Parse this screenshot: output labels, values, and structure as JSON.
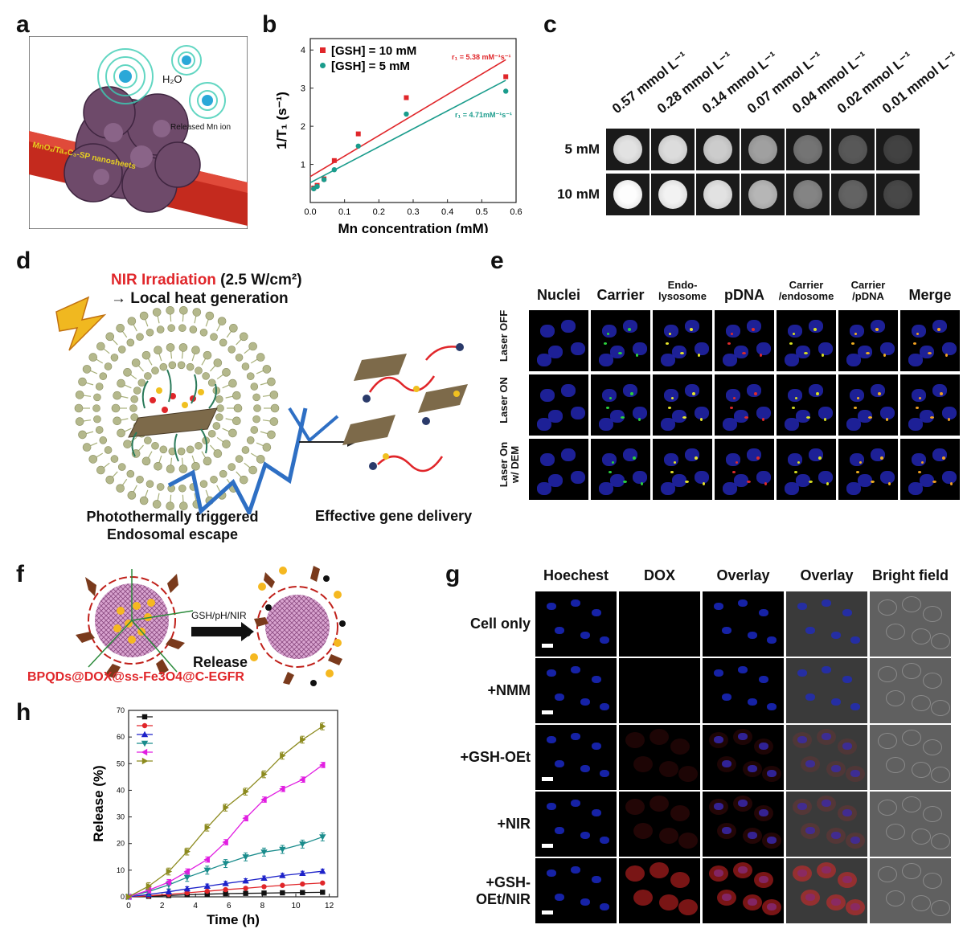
{
  "panels": {
    "a": {
      "letter": "a",
      "labels": {
        "water": "H₂O",
        "released": "Released Mn ion",
        "nanosheet": "MnOₓ/Ta₄C₃-SP nanosheets"
      }
    },
    "b": {
      "letter": "b",
      "r1_red": "r₁ = 5.38 mM⁻¹s⁻¹",
      "r1_teal": "r₁ = 4.71mM⁻¹s⁻¹"
    },
    "c": {
      "letter": "c",
      "concentrations": [
        "0.57 mmol L⁻¹",
        "0.28 mmol L⁻¹",
        "0.14 mmol L⁻¹",
        "0.07 mmol L⁻¹",
        "0.04 mmol L⁻¹",
        "0.02 mmol L⁻¹",
        "0.01 mmol L⁻¹"
      ],
      "rows": [
        "5 mM",
        "10 mM"
      ],
      "brightness_5mM": [
        0.82,
        0.8,
        0.74,
        0.58,
        0.42,
        0.32,
        0.24
      ],
      "brightness_10mM": [
        0.92,
        0.88,
        0.82,
        0.66,
        0.48,
        0.36,
        0.26
      ]
    },
    "d": {
      "letter": "d",
      "nir": "NIR Irradiation",
      "power": " (2.5 W/cm²)",
      "heat": "→ Local heat generation",
      "caption_left_1": "Photothermally triggered",
      "caption_left_2": "Endosomal escape",
      "caption_right": "Effective gene delivery"
    },
    "e": {
      "letter": "e",
      "columns": [
        "Nuclei",
        "Carrier",
        "Endo-\nlysosome",
        "pDNA",
        "Carrier\n/endosome",
        "Carrier\n/pDNA",
        "Merge"
      ],
      "rows": [
        "Laser OFF",
        "Laser ON",
        "Laser On\nw/ DEM"
      ]
    },
    "f": {
      "letter": "f",
      "arrow_label": "GSH/pH/NIR",
      "release": "Release",
      "formula": "BPQDs@DOX@ss-Fe3O4@C-EGFR"
    },
    "g": {
      "letter": "g",
      "columns": [
        "Hoechest",
        "DOX",
        "Overlay",
        "Overlay",
        "Bright field"
      ],
      "rows": [
        "Cell only",
        "+NMM",
        "+GSH-OEt",
        "+NIR",
        "+GSH-\nOEt/NIR"
      ],
      "dox_intensity": [
        0.02,
        0.02,
        0.18,
        0.22,
        0.75
      ]
    },
    "h": {
      "letter": "h"
    }
  },
  "chart_data": [
    {
      "panel": "b",
      "type": "scatter",
      "xlabel": "Mn concentration (mM)",
      "ylabel": "1/T₁ (s⁻¹)",
      "xlim": [
        0,
        0.6
      ],
      "ylim": [
        0,
        4.3
      ],
      "xticks": [
        "0.0",
        "0.1",
        "0.2",
        "0.3",
        "0.4",
        "0.5",
        "0.6"
      ],
      "yticks": [
        "1",
        "2",
        "3",
        "4"
      ],
      "legend_position": "top-left",
      "series": [
        {
          "name": "[GSH] = 10 mM",
          "color": "#e0262a",
          "marker": "square",
          "x": [
            0.01,
            0.02,
            0.04,
            0.07,
            0.14,
            0.28,
            0.57
          ],
          "y": [
            0.38,
            0.45,
            0.62,
            1.1,
            1.8,
            2.75,
            3.3
          ],
          "fit": {
            "intercept": 0.68,
            "slope": 5.38
          }
        },
        {
          "name": "[GSH] = 5 mM",
          "color": "#1a9c8c",
          "marker": "circle",
          "x": [
            0.01,
            0.02,
            0.04,
            0.07,
            0.14,
            0.28,
            0.57
          ],
          "y": [
            0.36,
            0.42,
            0.6,
            0.86,
            1.48,
            2.32,
            2.92
          ],
          "fit": {
            "intercept": 0.52,
            "slope": 4.71
          }
        }
      ]
    },
    {
      "panel": "h",
      "type": "line",
      "xlabel": "Time (h)",
      "ylabel": "Release (%)",
      "xlim": [
        0,
        12.5
      ],
      "ylim": [
        0,
        70
      ],
      "xticks": [
        "0",
        "2",
        "4",
        "6",
        "8",
        "10",
        "12"
      ],
      "yticks": [
        "0",
        "10",
        "20",
        "30",
        "40",
        "50",
        "60",
        "70"
      ],
      "legend_position": "top-left",
      "x": [
        0,
        1.2,
        2.4,
        3.5,
        4.7,
        5.8,
        7,
        8.1,
        9.2,
        10.4,
        11.6
      ],
      "series": [
        {
          "color": "#111111",
          "marker": "square",
          "values": [
            0,
            0.2,
            0.5,
            0.8,
            1,
            1.2,
            1.3,
            1.4,
            1.5,
            1.6,
            1.7
          ],
          "error": 0.3
        },
        {
          "color": "#e0262a",
          "marker": "circle",
          "values": [
            0,
            0.4,
            0.9,
            1.5,
            2.1,
            2.7,
            3.2,
            3.8,
            4.3,
            4.8,
            5.2
          ],
          "error": 0.4
        },
        {
          "color": "#1d22c9",
          "marker": "triangle",
          "values": [
            0,
            0.9,
            1.9,
            3,
            4,
            5,
            6,
            7,
            8,
            8.8,
            9.6
          ],
          "error": 0.8
        },
        {
          "color": "#1a8c8c",
          "marker": "triangle-down",
          "values": [
            0,
            2,
            4.5,
            7.3,
            10,
            12.5,
            15,
            16.8,
            17.8,
            19.8,
            22.5
          ],
          "error": 1.5
        },
        {
          "color": "#e11ee1",
          "marker": "triangle-left",
          "values": [
            0,
            2.5,
            5.5,
            9.5,
            14,
            20.5,
            29.5,
            36.5,
            40.5,
            44,
            49.5
          ],
          "error": 1.0
        },
        {
          "color": "#8c8a1e",
          "marker": "triangle-right",
          "values": [
            0,
            4,
            9.5,
            17,
            26,
            33.5,
            39.5,
            46,
            53,
            59,
            64
          ],
          "error": 1.3
        }
      ]
    }
  ]
}
